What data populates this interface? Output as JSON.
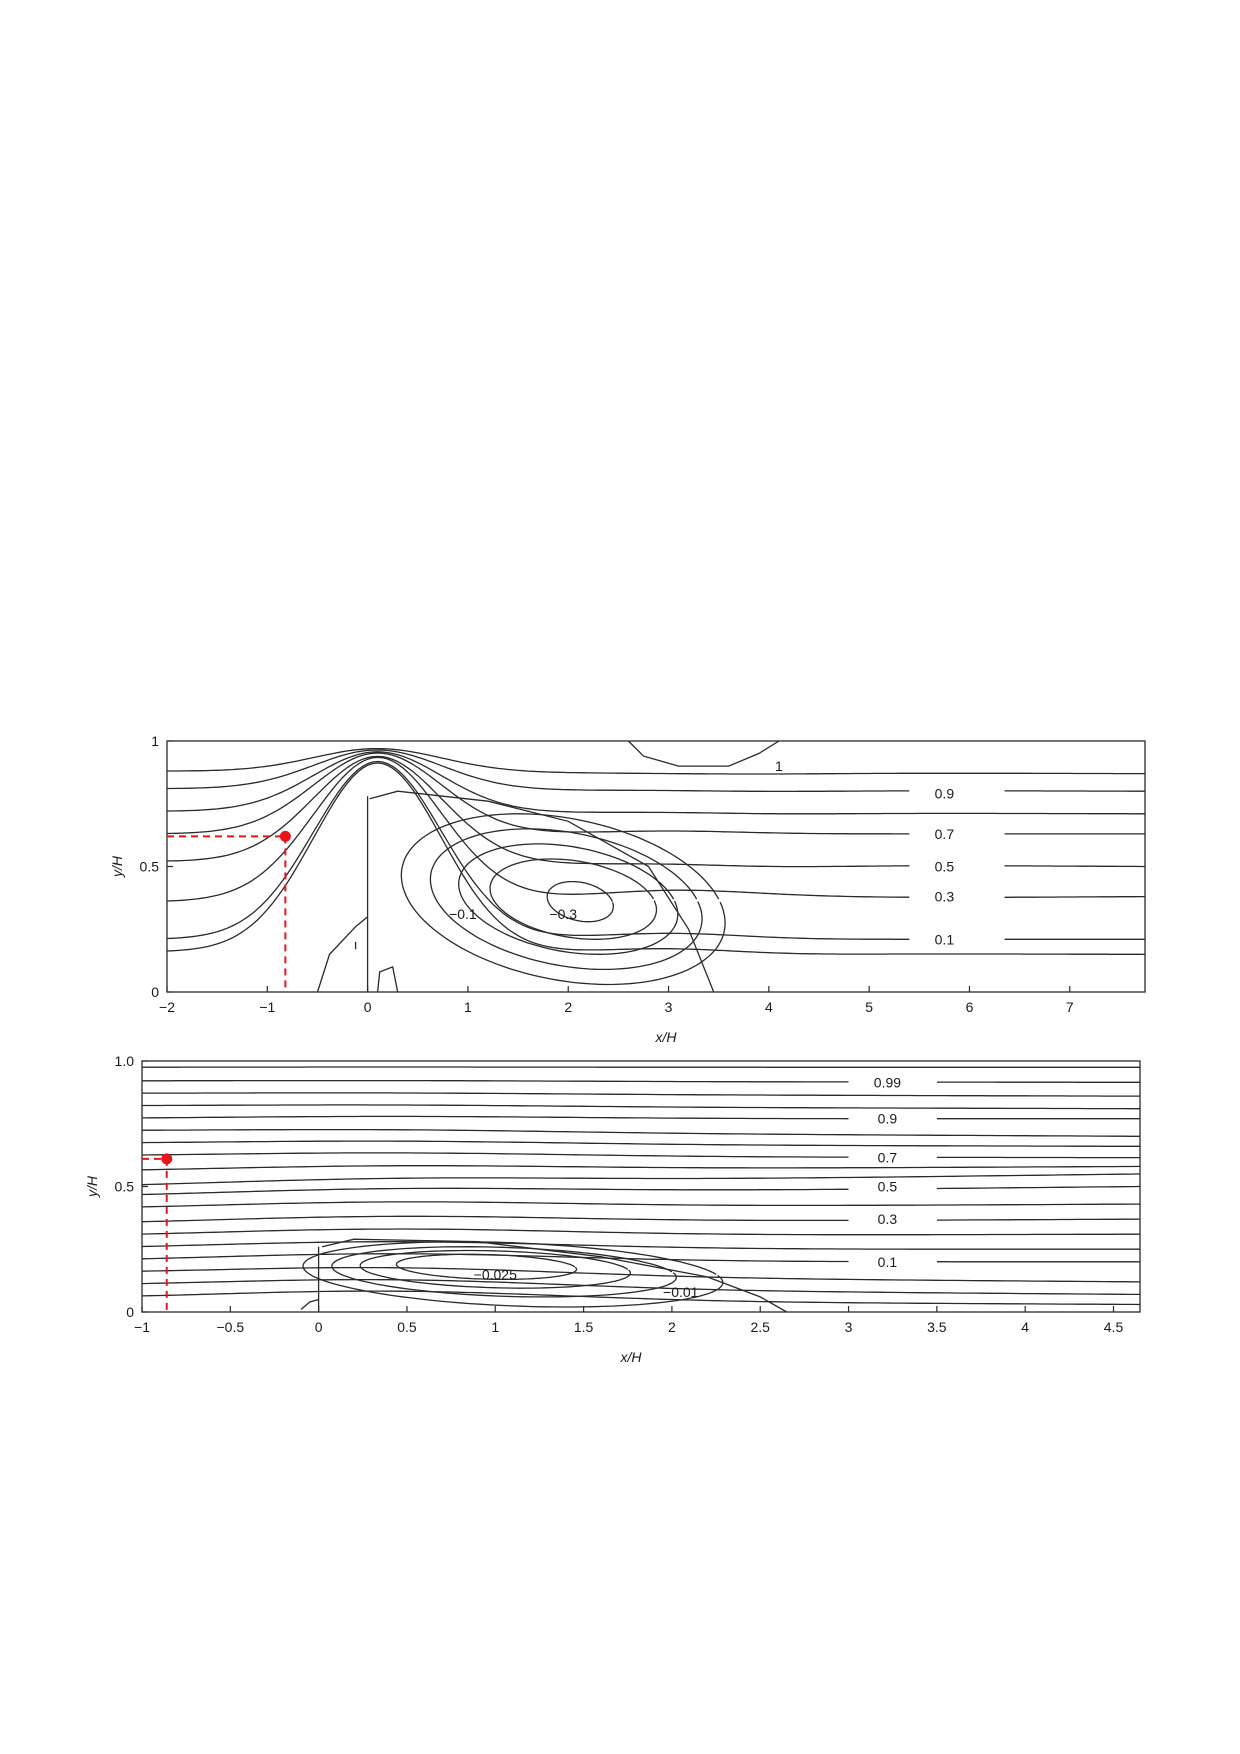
{
  "chart_data": [
    {
      "type": "contour",
      "xlabel": "x/H",
      "ylabel": "y/H",
      "xlim": [
        -2,
        7.75
      ],
      "ylim": [
        0,
        1
      ],
      "xticks": [
        -2,
        -1,
        0,
        1,
        2,
        3,
        4,
        5,
        6,
        7
      ],
      "xtick_labels": [
        "−2",
        "−1",
        "0",
        "1",
        "2",
        "3",
        "4",
        "5",
        "6",
        "7"
      ],
      "yticks": [
        0,
        0.5,
        1
      ],
      "ytick_labels": [
        "0",
        "0.5",
        "1"
      ],
      "grid": false,
      "contour_labels": [
        {
          "text": "1",
          "x": 4.1,
          "y": 0.9
        },
        {
          "text": "0.9",
          "x": 5.75,
          "y": 0.79
        },
        {
          "text": "0.7",
          "x": 5.75,
          "y": 0.63
        },
        {
          "text": "0.5",
          "x": 5.75,
          "y": 0.5
        },
        {
          "text": "0.3",
          "x": 5.75,
          "y": 0.38
        },
        {
          "text": "0.1",
          "x": 5.75,
          "y": 0.21
        },
        {
          "text": "−0.1",
          "x": 0.95,
          "y": 0.31
        },
        {
          "text": "−0.3",
          "x": 1.95,
          "y": 0.31
        }
      ],
      "marker": {
        "x": -0.82,
        "y": 0.62,
        "color": "#e8141c"
      }
    },
    {
      "type": "contour",
      "xlabel": "x/H",
      "ylabel": "y/H",
      "xlim": [
        -1,
        4.65
      ],
      "ylim": [
        0,
        1
      ],
      "xticks": [
        -1,
        -0.5,
        0,
        0.5,
        1,
        1.5,
        2,
        2.5,
        3,
        3.5,
        4,
        4.5
      ],
      "xtick_labels": [
        "−1",
        "−0.5",
        "0",
        "0.5",
        "1",
        "1.5",
        "2",
        "2.5",
        "3",
        "3.5",
        "4",
        "4.5"
      ],
      "yticks": [
        0,
        0.5,
        1
      ],
      "ytick_labels": [
        "0",
        "0.5",
        "1.0"
      ],
      "grid": false,
      "contour_labels": [
        {
          "text": "0.99",
          "x": 3.22,
          "y": 0.915
        },
        {
          "text": "0.9",
          "x": 3.22,
          "y": 0.77
        },
        {
          "text": "0.7",
          "x": 3.22,
          "y": 0.615
        },
        {
          "text": "0.5",
          "x": 3.22,
          "y": 0.5
        },
        {
          "text": "0.3",
          "x": 3.22,
          "y": 0.37
        },
        {
          "text": "0.1",
          "x": 3.22,
          "y": 0.2
        },
        {
          "text": "−0.025",
          "x": 1.0,
          "y": 0.15
        },
        {
          "text": "−0.01",
          "x": 2.05,
          "y": 0.08
        }
      ],
      "marker": {
        "x": -0.86,
        "y": 0.61,
        "color": "#e8141c"
      }
    }
  ]
}
